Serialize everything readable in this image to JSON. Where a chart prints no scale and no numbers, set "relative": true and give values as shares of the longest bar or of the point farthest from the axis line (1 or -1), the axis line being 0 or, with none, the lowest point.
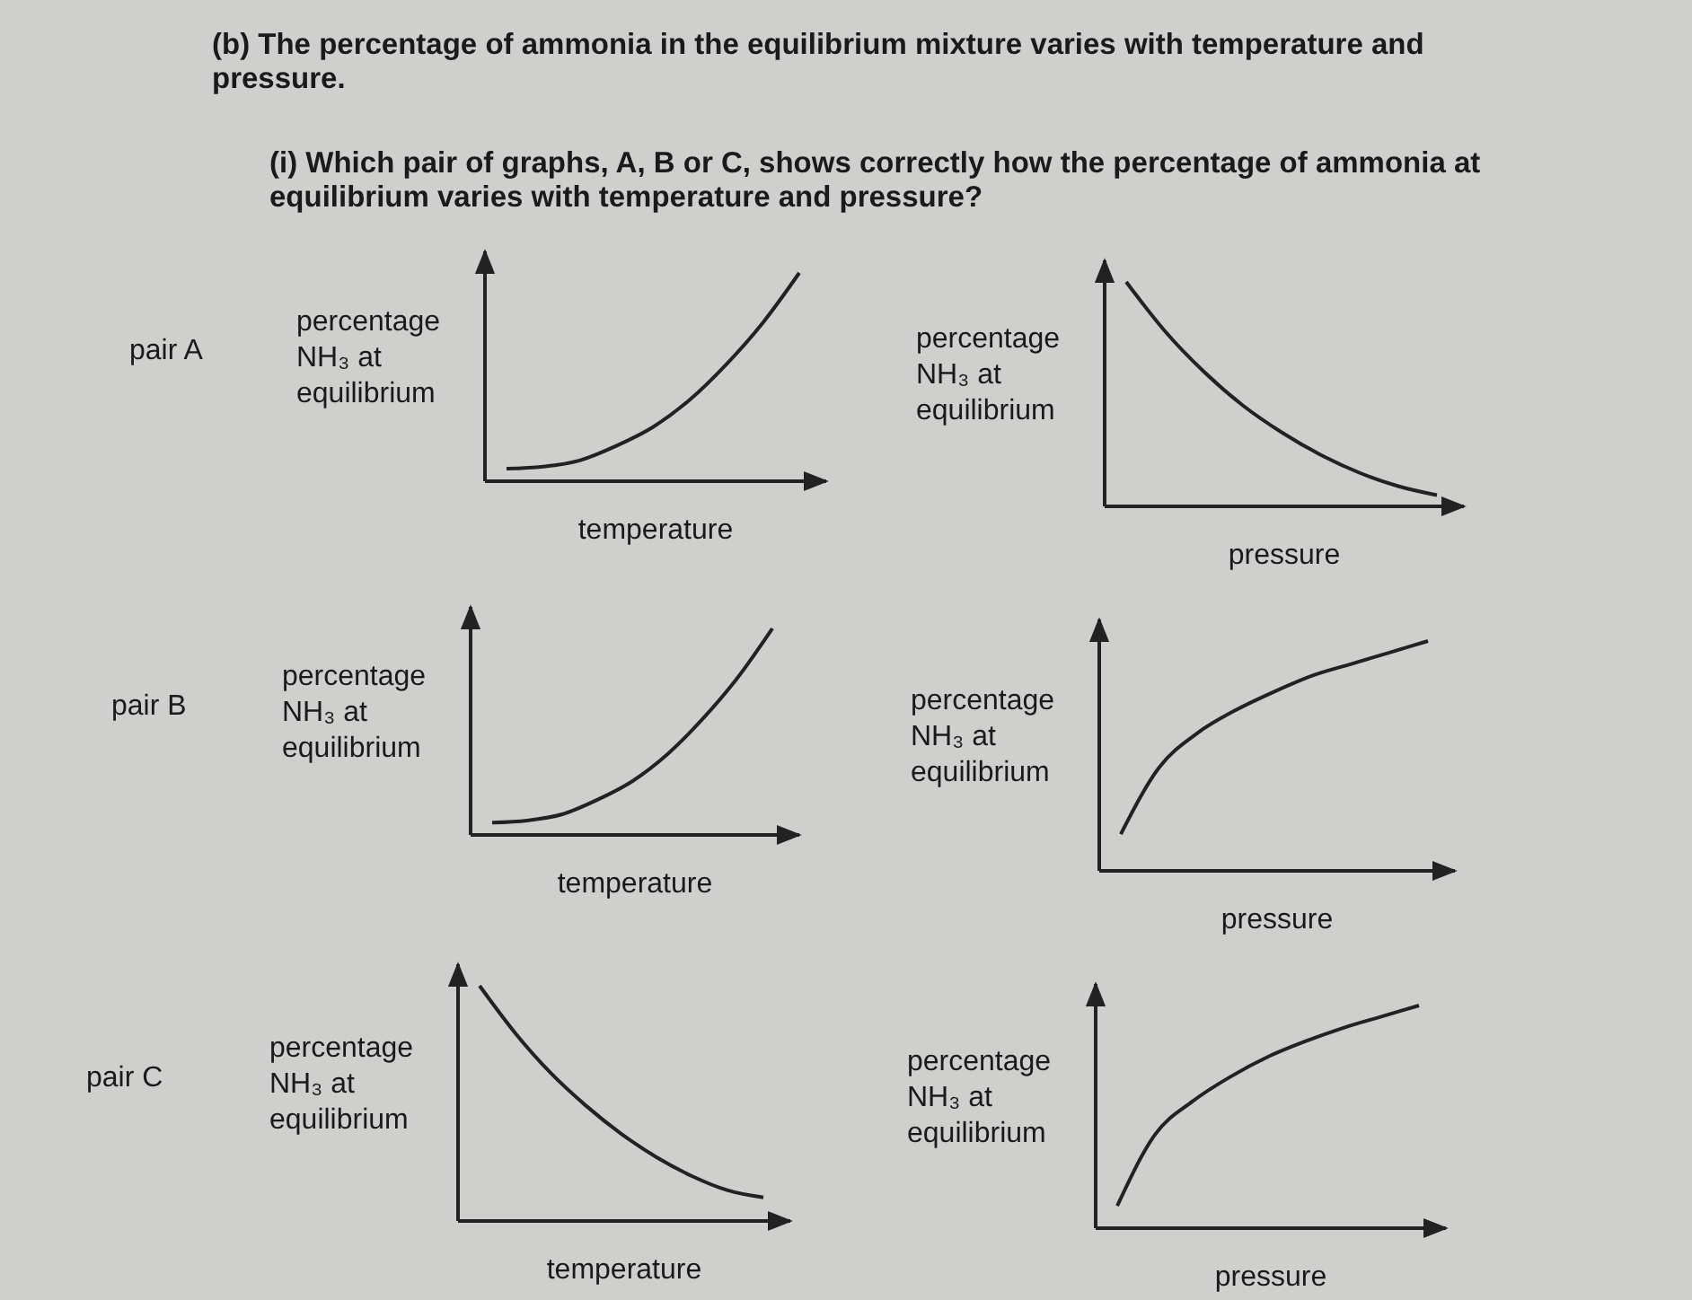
{
  "chart_data": [
    {
      "type": "line",
      "relative": true,
      "title": "(b) The percentage of ammonia in the equilibrium mixture varies with temperature and pressure.",
      "subtitle": "(i) Which pair of graphs, A, B or C, shows correctly how the percentage of ammonia at equilibrium varies with temperature and pressure?",
      "annotations": [
        "pair A"
      ],
      "ylabel": "percentage\nNH₃ at\nequilibrium",
      "xlabel": "temperature",
      "categories": [
        null,
        null,
        null,
        null,
        null,
        null,
        null,
        null,
        null
      ],
      "series": [
        {
          "color": "#222222",
          "values": [
            0.06,
            0.07,
            0.1,
            0.17,
            0.26,
            0.39,
            0.56,
            0.76,
            1.0
          ]
        }
      ]
    },
    {
      "type": "line",
      "relative": true,
      "ylabel": "percentage\nNH₃ at\nequilibrium",
      "xlabel": "pressure",
      "categories": [
        null,
        null,
        null,
        null,
        null,
        null,
        null,
        null,
        null
      ],
      "series": [
        {
          "color": "#222222",
          "values": [
            1.0,
            0.78,
            0.6,
            0.45,
            0.33,
            0.23,
            0.15,
            0.09,
            0.05
          ]
        }
      ]
    },
    {
      "type": "line",
      "relative": true,
      "annotations": [
        "pair B"
      ],
      "ylabel": "percentage\nNH₃ at\nequilibrium",
      "xlabel": "temperature",
      "categories": [
        null,
        null,
        null,
        null,
        null,
        null,
        null,
        null,
        null
      ],
      "series": [
        {
          "color": "#222222",
          "values": [
            0.06,
            0.07,
            0.1,
            0.17,
            0.26,
            0.39,
            0.56,
            0.76,
            1.0
          ]
        }
      ]
    },
    {
      "type": "line",
      "relative": true,
      "ylabel": "percentage\nNH₃ at\nequilibrium",
      "xlabel": "pressure",
      "categories": [
        null,
        null,
        null,
        null,
        null,
        null,
        null,
        null,
        null
      ],
      "series": [
        {
          "color": "#222222",
          "values": [
            0.16,
            0.45,
            0.6,
            0.7,
            0.78,
            0.85,
            0.9,
            0.95,
            1.0
          ]
        }
      ]
    },
    {
      "type": "line",
      "relative": true,
      "annotations": [
        "pair C"
      ],
      "ylabel": "percentage\nNH₃ at\nequilibrium",
      "xlabel": "temperature",
      "categories": [
        null,
        null,
        null,
        null,
        null,
        null,
        null,
        null,
        null
      ],
      "series": [
        {
          "color": "#222222",
          "values": [
            1.0,
            0.8,
            0.63,
            0.49,
            0.37,
            0.27,
            0.19,
            0.13,
            0.1
          ]
        }
      ]
    },
    {
      "type": "line",
      "relative": true,
      "ylabel": "percentage\nNH₃ at\nequilibrium",
      "xlabel": "pressure",
      "categories": [
        null,
        null,
        null,
        null,
        null,
        null,
        null,
        null,
        null
      ],
      "series": [
        {
          "color": "#222222",
          "values": [
            0.1,
            0.42,
            0.57,
            0.68,
            0.77,
            0.84,
            0.9,
            0.95,
            1.0
          ]
        }
      ]
    }
  ]
}
